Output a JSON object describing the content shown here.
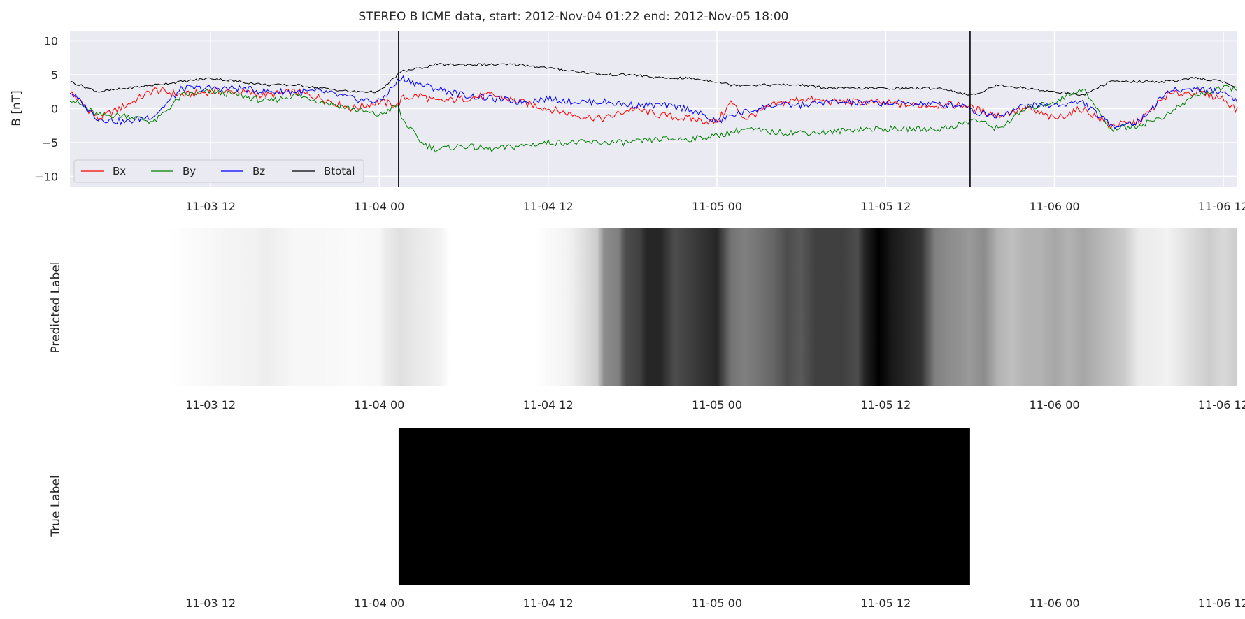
{
  "chart_data": [
    {
      "type": "line",
      "title": "STEREO B ICME data, start: 2012-Nov-04 01:22  end: 2012-Nov-05 18:00",
      "ylabel": "B [nT]",
      "xlabel": "",
      "x_range_hours": [
        "2012-11-03 02:00",
        "2012-11-06 13:00"
      ],
      "xlim": [
        2,
        85
      ],
      "ylim": [
        -11.5,
        11.5
      ],
      "yticks": [
        10,
        5,
        0,
        -5,
        -10
      ],
      "ytick_labels": [
        "10",
        "5",
        "0",
        "−5",
        "−10"
      ],
      "xticks": [
        12,
        24,
        36,
        48,
        60,
        72,
        84
      ],
      "xtick_labels": [
        "11-03 12",
        "11-04 00",
        "11-04 12",
        "11-05 00",
        "11-05 12",
        "11-06 00",
        "11-06 12"
      ],
      "grid": true,
      "legend": "lower-left",
      "event_lines": [
        25.37,
        66.0
      ],
      "colors": {
        "Bx": "#ff0000",
        "By": "#008000",
        "Bz": "#0000ff",
        "Btotal": "#000000"
      },
      "x": [
        2,
        4,
        6,
        8,
        10,
        12,
        14,
        16,
        18,
        20,
        22,
        24,
        25.3,
        25.6,
        27,
        28,
        30,
        32,
        34,
        36,
        38,
        40,
        42,
        44,
        46,
        48,
        49,
        50,
        52,
        54,
        56,
        58,
        60,
        62,
        64,
        65.9,
        66.2,
        68,
        70,
        72,
        74,
        76,
        78,
        80,
        82,
        84,
        85
      ],
      "series": [
        {
          "name": "Bx",
          "values": [
            2.5,
            -1.5,
            0.5,
            2.8,
            2.0,
            2.5,
            2.5,
            2.0,
            2.5,
            1.5,
            0.0,
            1.0,
            0.5,
            1.5,
            2.0,
            1.0,
            1.5,
            2.0,
            1.0,
            0.0,
            -1.0,
            -1.5,
            0.0,
            -1.0,
            -1.5,
            -2.0,
            1.0,
            -1.5,
            0.5,
            1.5,
            1.0,
            1.0,
            0.8,
            0.5,
            0.5,
            0.5,
            0.0,
            -1.0,
            0.0,
            -1.5,
            0.0,
            -2.5,
            -2.0,
            2.0,
            2.5,
            1.5,
            -0.3
          ]
        },
        {
          "name": "By",
          "values": [
            1.5,
            -1.0,
            -1.0,
            -2.0,
            2.0,
            2.5,
            2.0,
            1.0,
            2.0,
            1.0,
            0.0,
            -1.0,
            0.5,
            -1.5,
            -5.0,
            -6.0,
            -5.5,
            -6.0,
            -5.5,
            -5.0,
            -5.0,
            -5.0,
            -5.0,
            -4.5,
            -4.5,
            -4.0,
            -3.5,
            -3.0,
            -3.5,
            -3.5,
            -3.5,
            -3.0,
            -3.0,
            -3.0,
            -3.0,
            -2.0,
            -1.5,
            -3.0,
            0.0,
            1.0,
            3.0,
            -3.0,
            -2.5,
            -1.0,
            2.0,
            3.0,
            3.0
          ]
        },
        {
          "name": "Bz",
          "values": [
            2.5,
            -1.5,
            -2.0,
            -1.0,
            3.0,
            3.0,
            3.0,
            2.5,
            2.5,
            2.5,
            1.5,
            1.0,
            4.0,
            4.5,
            3.5,
            3.0,
            2.0,
            1.5,
            1.0,
            1.5,
            1.0,
            1.0,
            0.5,
            0.5,
            0.0,
            -2.0,
            -1.0,
            -0.5,
            0.5,
            0.5,
            1.0,
            0.8,
            0.8,
            0.8,
            0.6,
            0.5,
            -0.5,
            -1.0,
            0.5,
            0.5,
            1.0,
            -2.5,
            -2.0,
            2.5,
            3.0,
            2.5,
            1.2
          ]
        },
        {
          "name": "Btotal",
          "values": [
            4.0,
            2.5,
            3.0,
            3.5,
            4.0,
            4.5,
            4.0,
            3.5,
            3.5,
            3.0,
            2.5,
            2.5,
            5.0,
            5.5,
            6.0,
            6.5,
            6.5,
            6.5,
            6.5,
            6.0,
            5.5,
            5.0,
            5.0,
            4.5,
            4.5,
            4.0,
            3.5,
            3.5,
            3.5,
            3.5,
            3.0,
            3.0,
            3.0,
            3.0,
            3.0,
            2.0,
            2.0,
            3.5,
            3.0,
            2.5,
            2.0,
            4.0,
            4.0,
            4.0,
            4.5,
            4.0,
            3.0
          ]
        }
      ]
    },
    {
      "type": "heatmap",
      "ylabel": "Predicted Label",
      "colormap": "gray_r",
      "xlim": [
        2,
        85
      ],
      "xticks": [
        12,
        24,
        36,
        48,
        60,
        72,
        84
      ],
      "xtick_labels": [
        "11-03 12",
        "11-04 00",
        "11-04 12",
        "11-05 00",
        "11-05 12",
        "11-06 00",
        "11-06 12"
      ],
      "stops": [
        [
          2,
          0.0
        ],
        [
          9,
          0.0
        ],
        [
          11,
          0.02
        ],
        [
          13,
          0.04
        ],
        [
          15,
          0.05
        ],
        [
          16,
          0.07
        ],
        [
          17,
          0.05
        ],
        [
          18,
          0.03
        ],
        [
          20,
          0.03
        ],
        [
          22,
          0.02
        ],
        [
          24,
          0.03
        ],
        [
          24.5,
          0.08
        ],
        [
          25.5,
          0.12
        ],
        [
          26.5,
          0.09
        ],
        [
          27.5,
          0.07
        ],
        [
          28.3,
          0.05
        ],
        [
          29,
          0.0
        ],
        [
          35,
          0.0
        ],
        [
          36,
          0.02
        ],
        [
          37.5,
          0.05
        ],
        [
          38.5,
          0.12
        ],
        [
          39.5,
          0.2
        ],
        [
          40,
          0.45
        ],
        [
          41,
          0.5
        ],
        [
          41.5,
          0.7
        ],
        [
          42.5,
          0.75
        ],
        [
          43,
          0.85
        ],
        [
          44,
          0.85
        ],
        [
          45,
          0.7
        ],
        [
          46,
          0.75
        ],
        [
          47,
          0.8
        ],
        [
          48,
          0.85
        ],
        [
          49,
          0.55
        ],
        [
          50,
          0.5
        ],
        [
          51,
          0.55
        ],
        [
          52,
          0.6
        ],
        [
          53,
          0.7
        ],
        [
          54,
          0.65
        ],
        [
          55,
          0.75
        ],
        [
          56,
          0.75
        ],
        [
          57,
          0.75
        ],
        [
          58,
          0.7
        ],
        [
          58.5,
          0.85
        ],
        [
          59.5,
          1.0
        ],
        [
          60.5,
          0.9
        ],
        [
          61.5,
          0.85
        ],
        [
          62.5,
          0.8
        ],
        [
          63.5,
          0.5
        ],
        [
          64.5,
          0.45
        ],
        [
          66,
          0.4
        ],
        [
          67,
          0.45
        ],
        [
          68,
          0.3
        ],
        [
          69,
          0.25
        ],
        [
          70,
          0.3
        ],
        [
          71,
          0.3
        ],
        [
          72,
          0.35
        ],
        [
          73,
          0.3
        ],
        [
          74,
          0.35
        ],
        [
          75,
          0.3
        ],
        [
          76,
          0.25
        ],
        [
          77,
          0.2
        ],
        [
          78,
          0.08
        ],
        [
          79,
          0.07
        ],
        [
          80,
          0.05
        ],
        [
          81,
          0.1
        ],
        [
          82,
          0.15
        ],
        [
          83,
          0.2
        ],
        [
          84,
          0.15
        ],
        [
          85,
          0.2
        ]
      ]
    },
    {
      "type": "heatmap",
      "ylabel": "True Label",
      "colormap": "gray_r",
      "xlim": [
        2,
        85
      ],
      "xticks": [
        12,
        24,
        36,
        48,
        60,
        72,
        84
      ],
      "xtick_labels": [
        "11-03 12",
        "11-04 00",
        "11-04 12",
        "11-05 00",
        "11-05 12",
        "11-06 00",
        "11-06 12"
      ],
      "segments": [
        {
          "start": 2,
          "end": 25.37,
          "value": 0
        },
        {
          "start": 25.37,
          "end": 66.0,
          "value": 1
        },
        {
          "start": 66.0,
          "end": 85,
          "value": 0
        }
      ]
    }
  ]
}
